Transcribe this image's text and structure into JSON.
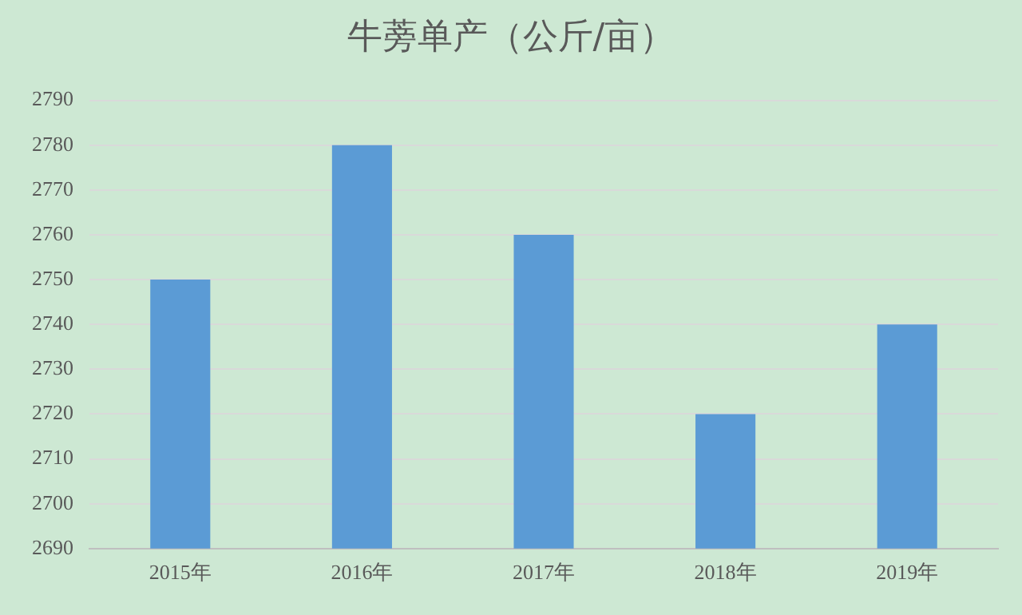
{
  "chart_data": {
    "type": "bar",
    "title": "牛蒡单产（公斤/亩）",
    "categories": [
      "2015年",
      "2016年",
      "2017年",
      "2018年",
      "2019年"
    ],
    "values": [
      2750,
      2780,
      2760,
      2720,
      2740
    ],
    "color": "#5b9bd5",
    "ylim": [
      2690,
      2790
    ],
    "yticks": [
      2690,
      2700,
      2710,
      2720,
      2730,
      2740,
      2750,
      2760,
      2770,
      2780,
      2790
    ],
    "grid": "y",
    "legend": false
  }
}
